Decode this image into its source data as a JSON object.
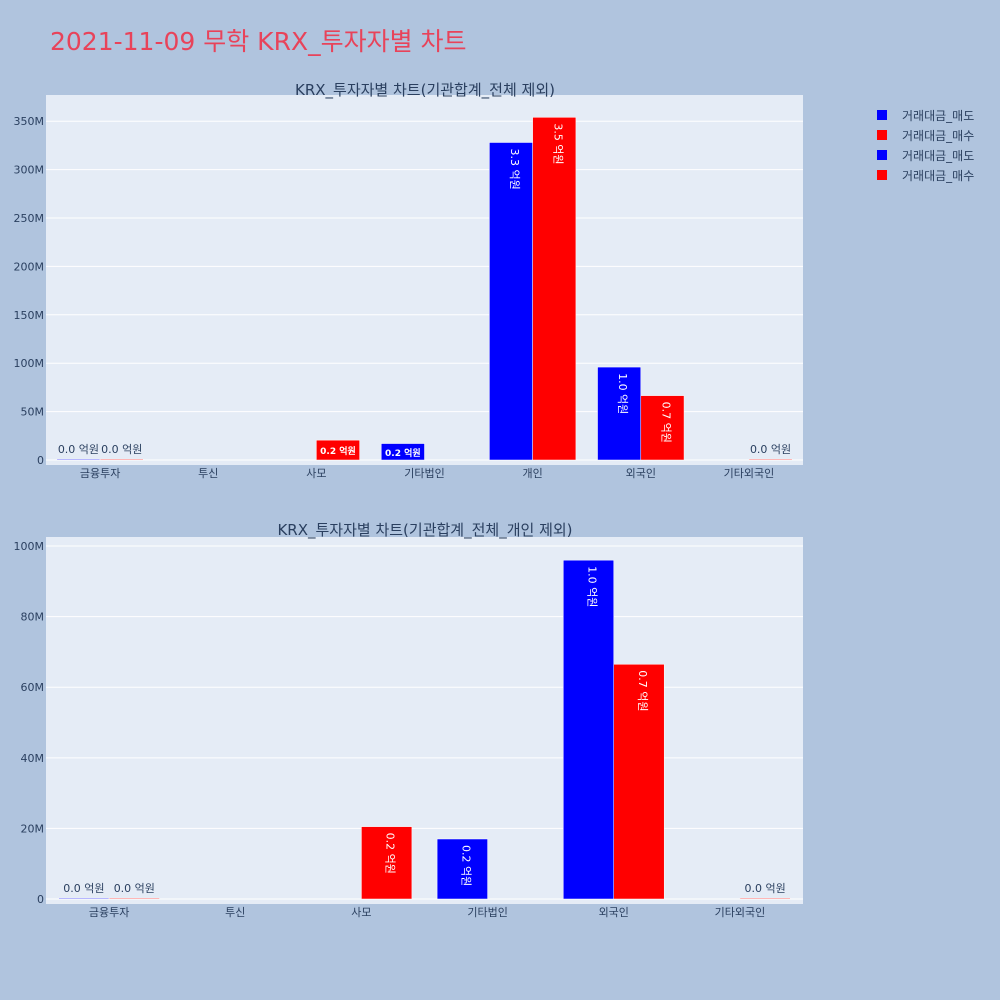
{
  "page": {
    "title": "2021-11-09 무학 KRX_투자자별 차트"
  },
  "legend": [
    {
      "name": "거래대금_매도",
      "color": "#0000ff"
    },
    {
      "name": "거래대금_매수",
      "color": "#ff0000"
    },
    {
      "name": "거래대금_매도",
      "color": "#0000ff"
    },
    {
      "name": "거래대금_매수",
      "color": "#ff0000"
    }
  ],
  "chart_data": [
    {
      "type": "bar",
      "title": "KRX_투자자별 차트(기관합계_전체 제외)",
      "categories": [
        "금융투자",
        "투신",
        "사모",
        "기타법인",
        "개인",
        "외국인",
        "기타외국인"
      ],
      "ylim": [
        0,
        375000000
      ],
      "yticks": [
        0,
        50000000,
        100000000,
        150000000,
        200000000,
        250000000,
        300000000,
        350000000
      ],
      "ytick_labels": [
        "0",
        "50M",
        "100M",
        "150M",
        "200M",
        "250M",
        "300M",
        "350M"
      ],
      "grid": true,
      "series": [
        {
          "name": "거래대금_매도",
          "color": "#0000ff",
          "values": [
            500000,
            null,
            null,
            17000000,
            328000000,
            96000000,
            null
          ],
          "labels": [
            "0.0 억원",
            null,
            null,
            "0.2 억원",
            "3.3 억원",
            "1.0 억원",
            null
          ]
        },
        {
          "name": "거래대금_매수",
          "color": "#ff0000",
          "values": [
            500000,
            null,
            20500000,
            null,
            354000000,
            66500000,
            500000
          ],
          "labels": [
            "0.0 억원",
            null,
            "0.2 억원",
            null,
            "3.5 억원",
            "0.7 억원",
            "0.0 억원"
          ]
        }
      ]
    },
    {
      "type": "bar",
      "title": "KRX_투자자별 차트(기관합계_전체_개인 제외)",
      "categories": [
        "금융투자",
        "투신",
        "사모",
        "기타법인",
        "외국인",
        "기타외국인"
      ],
      "ylim": [
        0,
        102000000
      ],
      "yticks": [
        0,
        20000000,
        40000000,
        60000000,
        80000000,
        100000000
      ],
      "ytick_labels": [
        "0",
        "20M",
        "40M",
        "60M",
        "80M",
        "100M"
      ],
      "grid": true,
      "series": [
        {
          "name": "거래대금_매도",
          "color": "#0000ff",
          "values": [
            150000,
            null,
            null,
            17000000,
            96000000,
            null
          ],
          "labels": [
            "0.0 억원",
            null,
            null,
            "0.2 억원",
            "1.0 억원",
            null
          ]
        },
        {
          "name": "거래대금_매수",
          "color": "#ff0000",
          "values": [
            150000,
            null,
            20500000,
            null,
            66500000,
            150000
          ],
          "labels": [
            "0.0 억원",
            null,
            "0.2 억원",
            null,
            "0.7 억원",
            "0.0 억원"
          ]
        }
      ]
    }
  ]
}
